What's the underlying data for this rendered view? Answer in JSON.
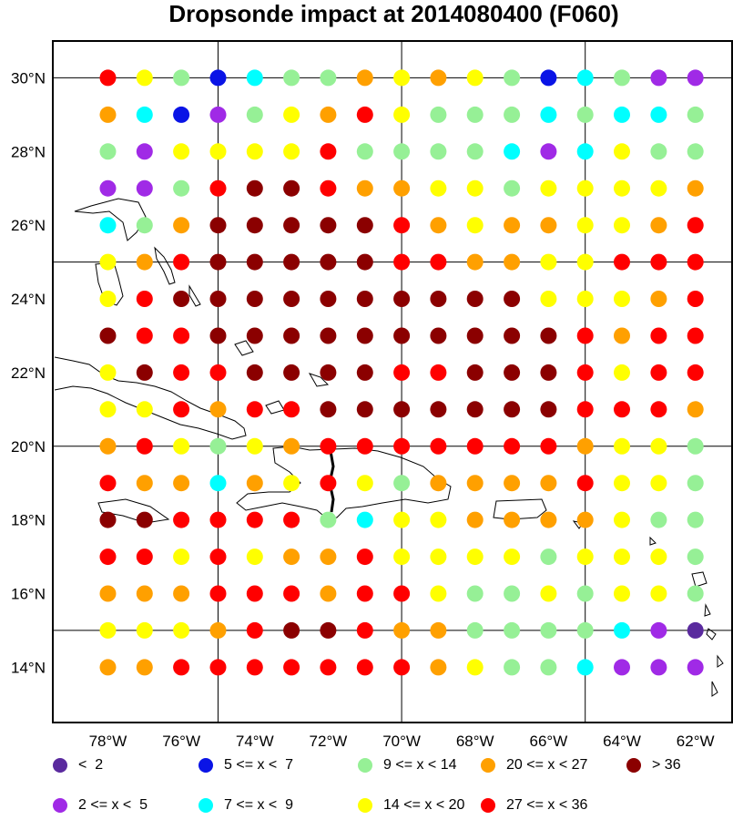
{
  "title": "Dropsonde impact at 2014080400 (F060)",
  "axes": {
    "lon_range": [
      -79.5,
      -61.0
    ],
    "lat_range": [
      12.5,
      31.0
    ],
    "lat_ticks": [
      {
        "value": 14,
        "label": "14°N"
      },
      {
        "value": 16,
        "label": "16°N"
      },
      {
        "value": 18,
        "label": "18°N"
      },
      {
        "value": 20,
        "label": "20°N"
      },
      {
        "value": 22,
        "label": "22°N"
      },
      {
        "value": 24,
        "label": "24°N"
      },
      {
        "value": 26,
        "label": "26°N"
      },
      {
        "value": 28,
        "label": "28°N"
      },
      {
        "value": 30,
        "label": "30°N"
      }
    ],
    "lon_ticks": [
      {
        "value": -78,
        "label": "78°W"
      },
      {
        "value": -76,
        "label": "76°W"
      },
      {
        "value": -74,
        "label": "74°W"
      },
      {
        "value": -72,
        "label": "72°W"
      },
      {
        "value": -70,
        "label": "70°W"
      },
      {
        "value": -68,
        "label": "68°W"
      },
      {
        "value": -66,
        "label": "66°W"
      },
      {
        "value": -64,
        "label": "64°W"
      },
      {
        "value": -62,
        "label": "62°W"
      }
    ],
    "grid_lons": [
      -75,
      -70,
      -65
    ],
    "grid_lats": [
      15,
      20,
      25,
      30
    ]
  },
  "legend": [
    {
      "code": "A",
      "label": "<  2",
      "color": "#5a2a9e"
    },
    {
      "code": "B",
      "label": "5 <= x <  7",
      "color": "#0a14e6"
    },
    {
      "code": "C",
      "label": "9 <= x < 14",
      "color": "#96f096"
    },
    {
      "code": "D",
      "label": "20 <= x < 27",
      "color": "#ffa000"
    },
    {
      "code": "E",
      "label": "> 36",
      "color": "#8b0000"
    },
    {
      "code": "F",
      "label": "2 <= x <  5",
      "color": "#a02ae6"
    },
    {
      "code": "G",
      "label": "7 <= x <  9",
      "color": "#00ffff"
    },
    {
      "code": "H",
      "label": "14 <= x < 20",
      "color": "#ffff00"
    },
    {
      "code": "I",
      "label": "27 <= x < 36",
      "color": "#ff0000"
    }
  ],
  "chart_data": {
    "type": "scatter",
    "title": "Dropsonde impact at 2014080400 (F060)",
    "lons": [
      -78,
      -77,
      -76,
      -75,
      -74,
      -73,
      -72,
      -71,
      -70,
      -69,
      -68,
      -67,
      -66,
      -65,
      -64,
      -63,
      -62
    ],
    "lats": [
      30,
      29,
      28,
      27,
      26,
      25,
      24,
      23,
      22,
      21,
      20,
      19,
      18,
      17,
      16,
      15,
      14
    ],
    "category_rows": [
      "IHCBGCCDHDHCBGCFF",
      "DGBFCHDIHCCCGCGGC",
      "CFHHHHICCCCGFGHCC",
      "FFCIEEIDDHHCHHHHD",
      "GCDEEEEEIDHDDHHDI",
      "HDIEEEEEIIDDHHIII",
      "HIEEEEEEEEEEHHHDI",
      "EIIEEEEEEEEEEIDII",
      "HEIIEEEEIIEEEIHII",
      "HHIDIIEEEEEEEIIID",
      "DIHCHDIIIIIIIDHHC",
      "IDDGDHIHCDDDDIHHC",
      "EEIIIICGHHDDDDHCC",
      "IIHIHDDIHHHHCHHHC",
      "DDDIIIDIIHCCHCHHC",
      "HHHDIEEIDDCCCCGFA",
      "DDIIIIIIIDHCCGFFF"
    ]
  }
}
